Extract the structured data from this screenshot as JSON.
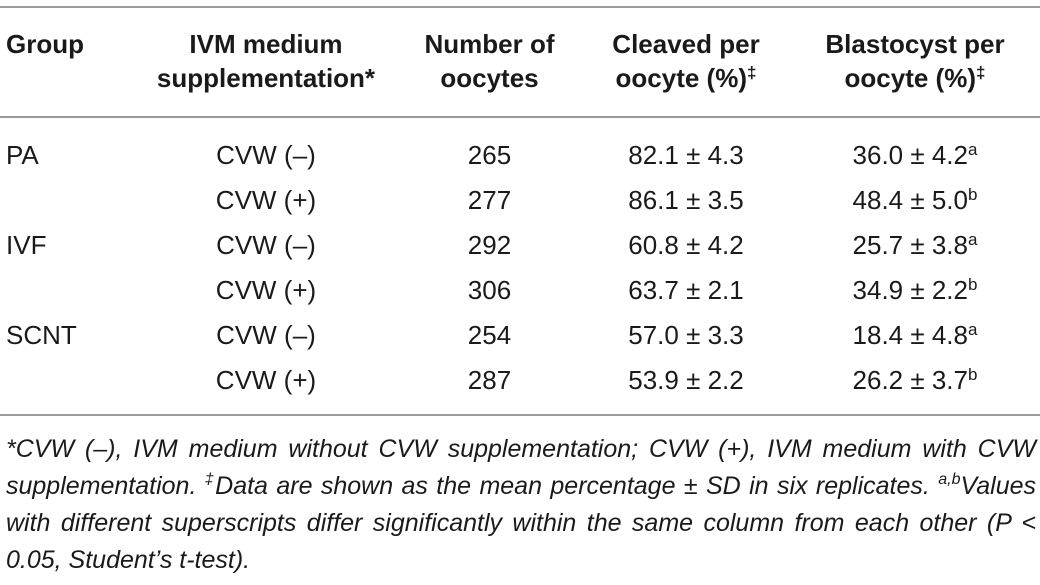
{
  "table": {
    "headers": {
      "group": "Group",
      "ivm_line1": "IVM medium",
      "ivm_line2": "supplementation*",
      "num_line1": "Number of",
      "num_line2": "oocytes",
      "cleaved_line1": "Cleaved per",
      "cleaved_line2": "oocyte (%)",
      "cleaved_sup": "‡",
      "blast_line1": "Blastocyst per",
      "blast_line2": "oocyte (%)",
      "blast_sup": "‡"
    },
    "rows": [
      {
        "group": "PA",
        "supp": "CVW (–)",
        "n": "265",
        "cleaved": "82.1 ± 4.3",
        "blast": "36.0 ± 4.2",
        "blast_sup": "a"
      },
      {
        "group": "",
        "supp": "CVW (+)",
        "n": "277",
        "cleaved": "86.1 ± 3.5",
        "blast": "48.4 ± 5.0",
        "blast_sup": "b"
      },
      {
        "group": "IVF",
        "supp": "CVW (–)",
        "n": "292",
        "cleaved": "60.8 ± 4.2",
        "blast": "25.7 ± 3.8",
        "blast_sup": "a"
      },
      {
        "group": "",
        "supp": "CVW (+)",
        "n": "306",
        "cleaved": "63.7 ± 2.1",
        "blast": "34.9 ± 2.2",
        "blast_sup": "b"
      },
      {
        "group": "SCNT",
        "supp": "CVW (–)",
        "n": "254",
        "cleaved": "57.0 ± 3.3",
        "blast": "18.4 ± 4.8",
        "blast_sup": "a"
      },
      {
        "group": "",
        "supp": "CVW (+)",
        "n": "287",
        "cleaved": "53.9 ± 2.2",
        "blast": "26.2 ± 3.7",
        "blast_sup": "b"
      }
    ]
  },
  "footnote": {
    "part1": "*CVW (–), IVM medium without CVW supplementation; CVW (+), IVM medium with CVW supplementation. ",
    "sup1": "‡",
    "part2": "Data are shown as the mean percentage ± SD in six replicates. ",
    "sup2": "a,b",
    "part3": "Values with different superscripts differ significantly within the same column from each other (P < 0.05, Student’s t-test)."
  }
}
